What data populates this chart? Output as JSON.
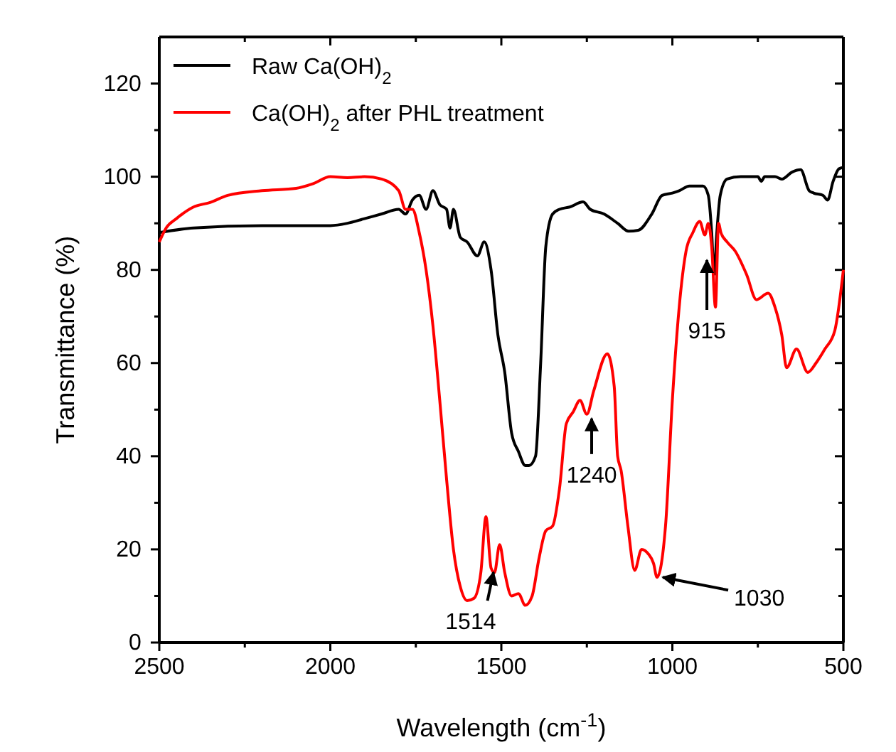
{
  "chart_data": {
    "type": "line",
    "xlabel": "Wavelength (cm$^{-1}$)",
    "ylabel": "Transmittance (%)",
    "xlim": [
      2500,
      500
    ],
    "xticks": [
      2500,
      {
        "value": 2250,
        "label": null
      },
      2000,
      {
        "value": 1750,
        "label": null
      },
      1500,
      {
        "value": 1250,
        "label": null
      },
      1000,
      {
        "value": 750,
        "label": null
      },
      500
    ],
    "ylim": [
      0,
      130
    ],
    "yticks": [
      0,
      {
        "value": 10,
        "label": null
      },
      20,
      {
        "value": 30,
        "label": null
      },
      40,
      {
        "value": 50,
        "label": null
      },
      60,
      {
        "value": 70,
        "label": null
      },
      80,
      {
        "value": 90,
        "label": null
      },
      100,
      {
        "value": 110,
        "label": null
      },
      120
    ],
    "legend": "top left",
    "grid": false,
    "line_style": "solid",
    "marker": "none",
    "series": [
      {
        "name": "Raw Ca(OH)$_{2}$",
        "color": "#000000",
        "x": [
          2500,
          2400,
          2200,
          2000,
          1950,
          1900,
          1850,
          1800,
          1780,
          1760,
          1740,
          1720,
          1700,
          1680,
          1660,
          1650,
          1640,
          1620,
          1600,
          1570,
          1550,
          1530,
          1510,
          1490,
          1470,
          1450,
          1430,
          1419,
          1400,
          1385,
          1370,
          1350,
          1330,
          1300,
          1261,
          1240,
          1200,
          1160,
          1128,
          1100,
          1060,
          1030,
          1000,
          980,
          950,
          910,
          895,
          885,
          878,
          870,
          860,
          840,
          800,
          750,
          740,
          730,
          700,
          680,
          650,
          625,
          600,
          587,
          560,
          546,
          530,
          513,
          500
        ],
        "values": [
          88,
          89,
          89.5,
          89.5,
          90,
          91,
          92,
          93,
          92,
          95,
          96,
          93,
          97,
          94,
          93,
          89,
          93,
          87,
          86,
          83,
          86,
          80,
          66,
          58,
          45,
          41,
          38,
          38,
          40,
          60,
          85,
          92,
          93,
          93.5,
          94.6,
          93,
          92,
          90,
          88.3,
          88.5,
          92,
          96,
          96.5,
          97,
          98,
          98,
          96,
          88,
          79,
          88,
          96,
          99.5,
          100,
          100,
          99,
          100,
          100,
          99.5,
          101,
          101.5,
          97,
          96.5,
          96,
          95,
          99,
          101.7,
          102
        ]
      },
      {
        "name": "Ca(OH)$_{2}$ after PHL treatment",
        "color": "#ff0000",
        "x": [
          2500,
          2480,
          2450,
          2400,
          2350,
          2300,
          2200,
          2100,
          2050,
          2000,
          1950,
          1900,
          1850,
          1800,
          1780,
          1760,
          1740,
          1720,
          1700,
          1680,
          1660,
          1640,
          1620,
          1600,
          1580,
          1560,
          1545,
          1530,
          1520,
          1505,
          1490,
          1470,
          1450,
          1430,
          1410,
          1390,
          1370,
          1350,
          1330,
          1310,
          1290,
          1270,
          1250,
          1230,
          1190,
          1170,
          1160,
          1150,
          1130,
          1110,
          1090,
          1070,
          1055,
          1045,
          1020,
          1000,
          980,
          960,
          940,
          920,
          905,
          895,
          885,
          874,
          865,
          858,
          840,
          816,
          783,
          754,
          720,
          700,
          680,
          666,
          637,
          604,
          580,
          554,
          525,
          500
        ],
        "values": [
          86,
          89,
          91,
          93.5,
          94.5,
          96,
          97,
          97.5,
          98.5,
          100,
          99.8,
          100,
          99.5,
          97,
          93,
          93,
          88,
          80,
          68,
          52,
          35,
          20,
          12,
          9,
          9.5,
          15,
          27,
          16,
          15,
          21,
          15,
          10,
          10.5,
          8,
          10,
          18,
          24,
          25,
          33,
          47,
          49.5,
          52,
          49,
          54,
          62,
          55,
          40,
          37,
          25,
          15.5,
          20,
          19,
          17,
          14,
          25,
          52,
          72,
          84,
          88,
          90.4,
          87.5,
          90,
          85,
          72,
          90,
          88,
          86,
          84,
          79,
          73.6,
          75,
          72,
          66,
          59,
          63,
          58,
          60,
          63,
          67,
          80
        ]
      }
    ],
    "annotations": [
      {
        "text": "1514",
        "x": 1523,
        "y": 16
      },
      {
        "text": "1240",
        "x": 1236,
        "y": 49
      },
      {
        "text": "915",
        "x": 899,
        "y": 83
      },
      {
        "text": "1030",
        "x": 1028,
        "y": 14
      }
    ]
  }
}
